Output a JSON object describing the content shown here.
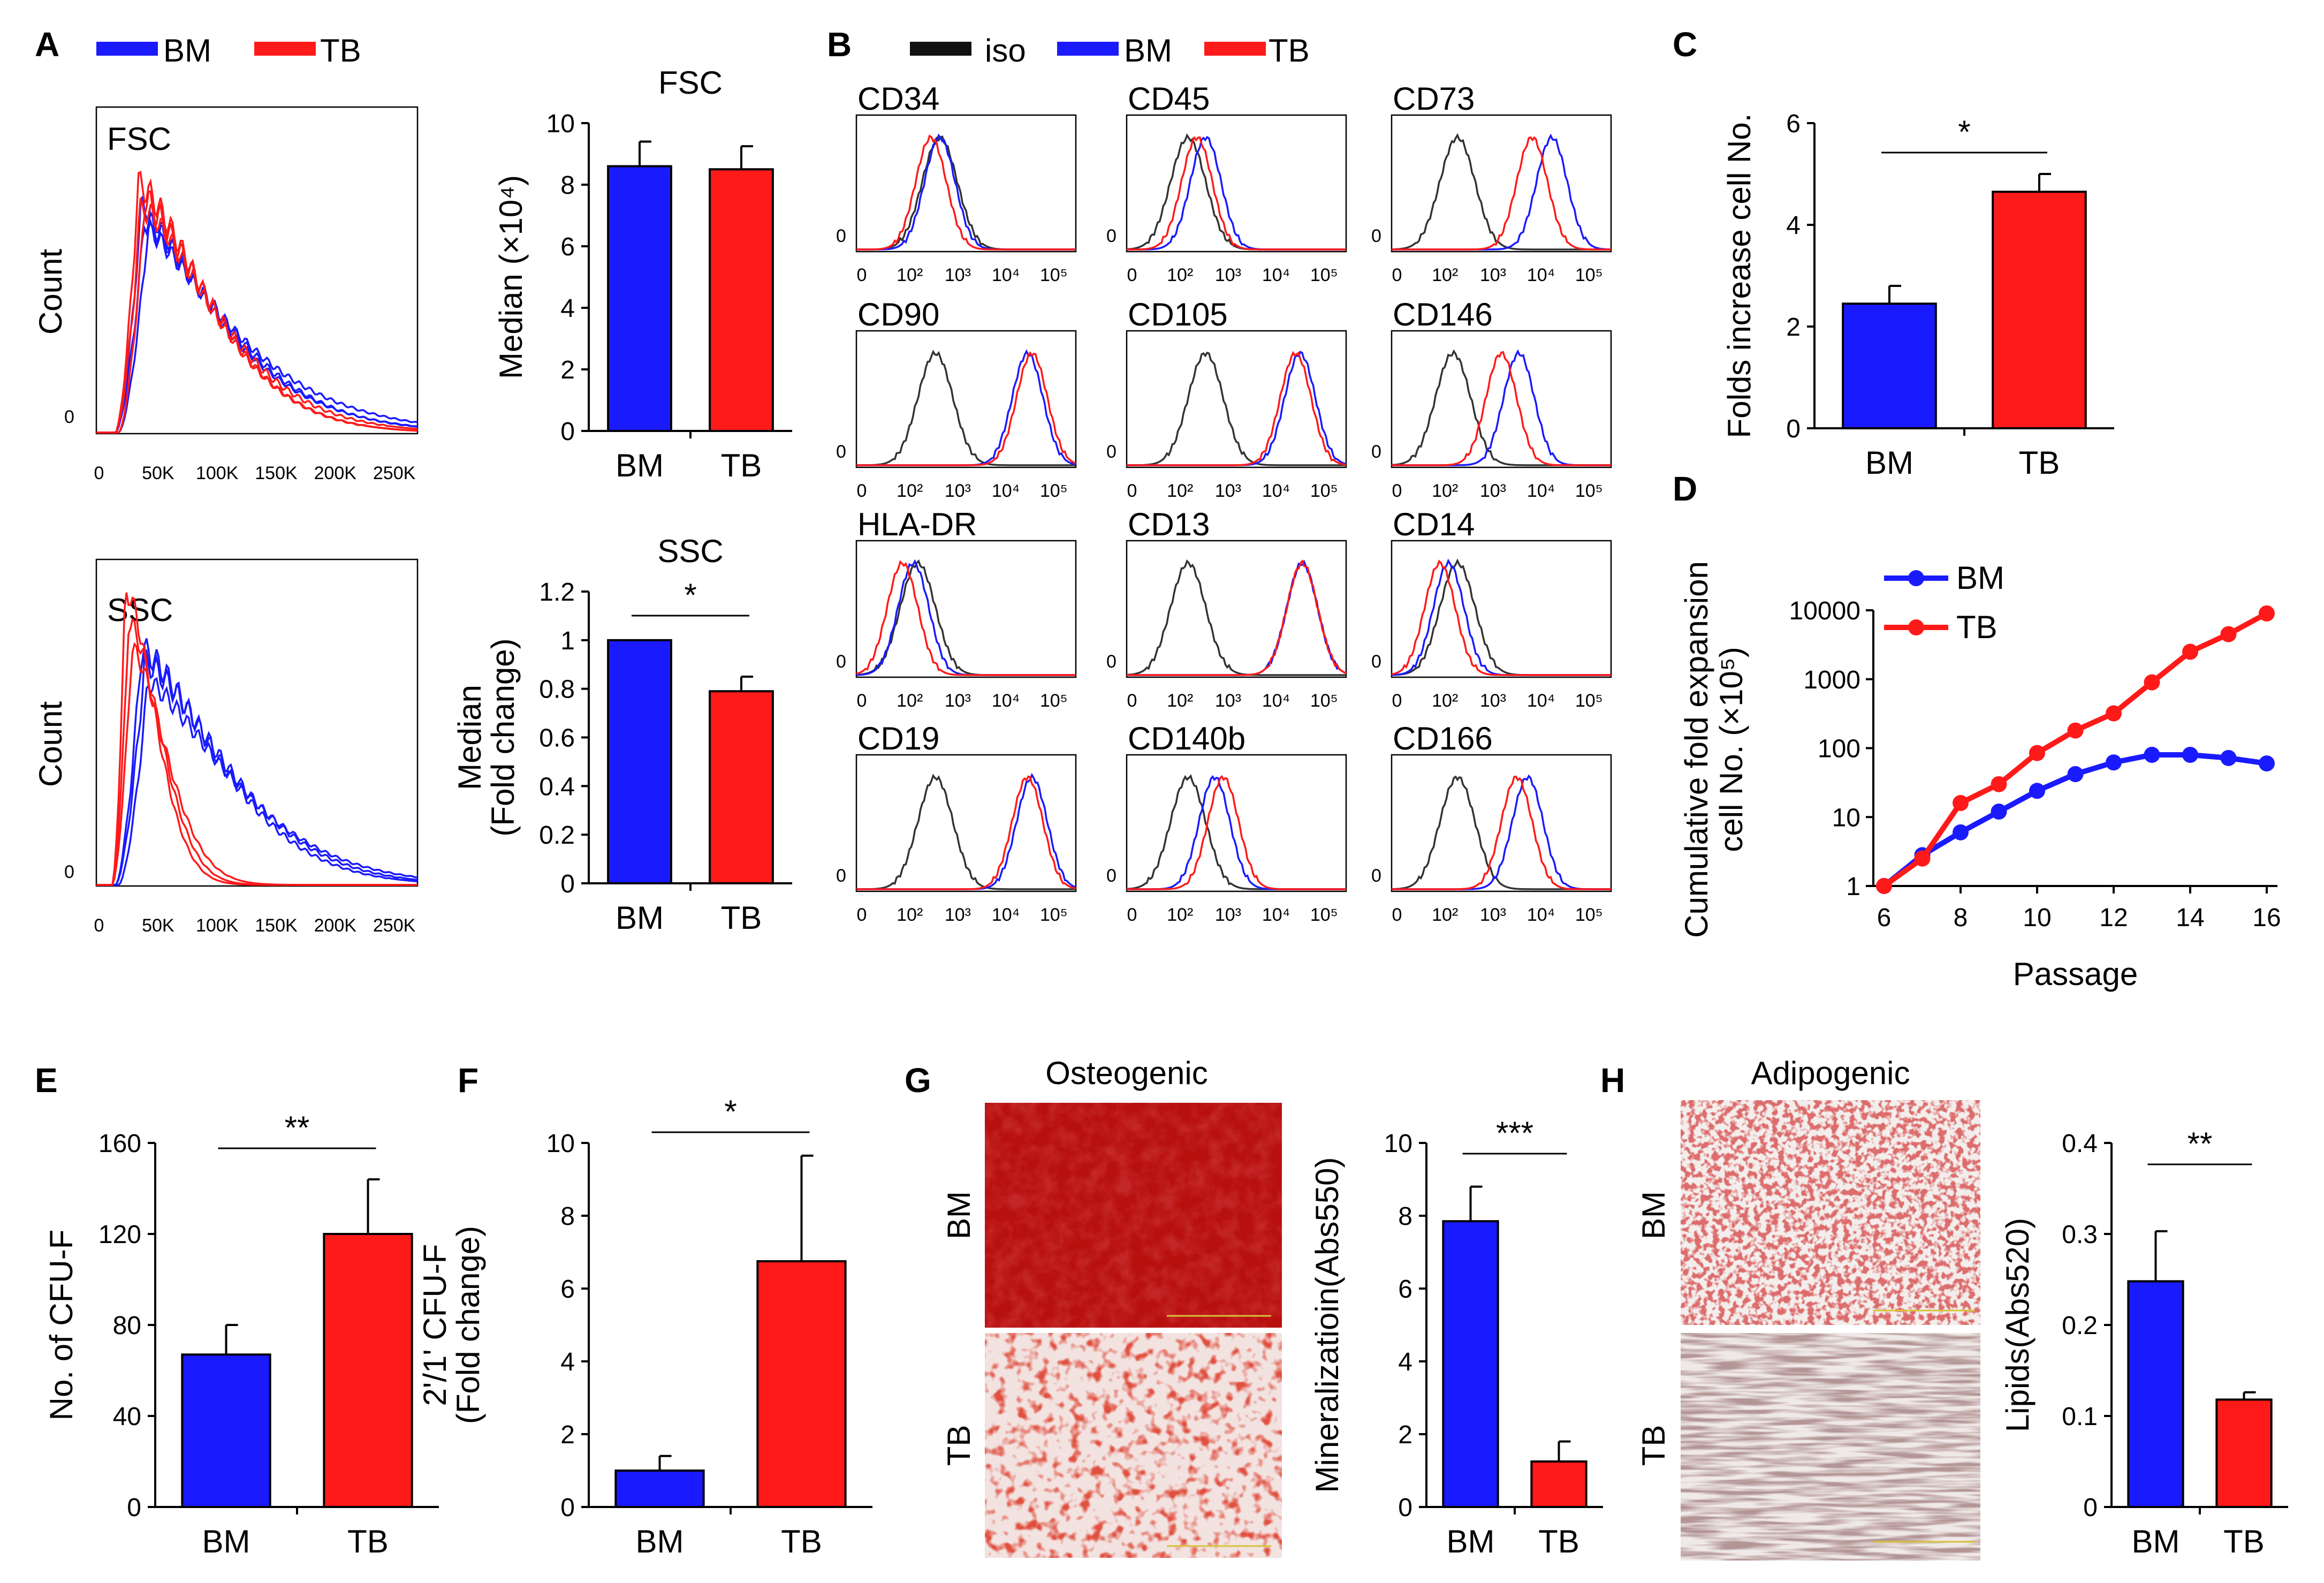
{
  "colors": {
    "BM": "#1a1aff",
    "TB": "#ff1a1a",
    "iso": "#333333"
  },
  "panelA": {
    "label": "A",
    "legend": [
      {
        "key": "BM",
        "label": "BM"
      },
      {
        "key": "TB",
        "label": "TB"
      }
    ],
    "ylabel": "Count",
    "zero": "0",
    "xticks": [
      "0",
      "50K",
      "100K",
      "150K",
      "200K",
      "250K"
    ],
    "hist_labels": [
      "FSC",
      "SSC"
    ],
    "fsc_bar": {
      "type": "bar",
      "title": "FSC",
      "ylabel": "Median (×10⁴)",
      "categories": [
        "BM",
        "TB"
      ],
      "values": [
        8.6,
        8.5
      ],
      "errors": [
        0.8,
        0.75
      ],
      "ylim": [
        0,
        10
      ],
      "yticks": [
        "0",
        "2",
        "4",
        "6",
        "8",
        "10"
      ]
    },
    "ssc_bar": {
      "type": "bar",
      "title": "SSC",
      "ylabel_lines": [
        "Median",
        "(Fold change)"
      ],
      "categories": [
        "BM",
        "TB"
      ],
      "values": [
        1.0,
        0.79
      ],
      "errors": [
        0.0,
        0.06
      ],
      "ylim": [
        0,
        1.2
      ],
      "yticks": [
        "0",
        "0.2",
        "0.4",
        "0.6",
        "0.8",
        "1",
        "1.2"
      ],
      "sig": "*"
    }
  },
  "panelB": {
    "label": "B",
    "legend": [
      {
        "key": "iso",
        "label": "iso"
      },
      {
        "key": "BM",
        "label": "BM"
      },
      {
        "key": "TB",
        "label": "TB"
      }
    ],
    "markers": [
      "CD34",
      "CD45",
      "CD73",
      "CD90",
      "CD105",
      "CD146",
      "HLA-DR",
      "CD13",
      "CD14",
      "CD19",
      "CD140b",
      "CD166"
    ],
    "zero": "0",
    "xticks": [
      "0",
      "10²",
      "10³",
      "10⁴",
      "10⁵"
    ]
  },
  "chart_data": [
    {
      "type": "bar",
      "title": "FSC",
      "ylabel": "Median (×10⁴)",
      "categories": [
        "BM",
        "TB"
      ],
      "values": [
        8.6,
        8.5
      ],
      "ylim": [
        0,
        10
      ]
    },
    {
      "type": "bar",
      "title": "SSC",
      "ylabel": "Median (Fold change)",
      "categories": [
        "BM",
        "TB"
      ],
      "values": [
        1.0,
        0.79
      ],
      "ylim": [
        0,
        1.2
      ]
    },
    {
      "type": "bar",
      "ylabel": "Folds increase cell No.",
      "categories": [
        "BM",
        "TB"
      ],
      "values": [
        2.45,
        4.65
      ],
      "ylim": [
        0,
        6
      ]
    },
    {
      "type": "line",
      "xlabel": "Passage",
      "ylabel": "Cumulative fold expansion cell No. (×10⁵)",
      "x": [
        6,
        7,
        8,
        9,
        10,
        11,
        12,
        13,
        14,
        15,
        16
      ],
      "series": [
        {
          "name": "BM",
          "values": [
            1,
            2.8,
            6,
            12,
            24,
            42,
            62,
            80,
            80,
            72,
            60
          ]
        },
        {
          "name": "TB",
          "values": [
            1,
            2.5,
            16,
            30,
            85,
            180,
            320,
            900,
            2500,
            4500,
            9000
          ]
        }
      ]
    },
    {
      "type": "bar",
      "ylabel": "No. of CFU-F",
      "categories": [
        "BM",
        "TB"
      ],
      "values": [
        67,
        120
      ],
      "ylim": [
        0,
        160
      ]
    },
    {
      "type": "bar",
      "ylabel": "2'/1' CFU-F (Fold change)",
      "categories": [
        "BM",
        "TB"
      ],
      "values": [
        1.0,
        6.75
      ],
      "ylim": [
        0,
        10
      ]
    },
    {
      "type": "bar",
      "ylabel": "Mineralizatioin(Abs550)",
      "categories": [
        "BM",
        "TB"
      ],
      "values": [
        7.85,
        1.25
      ],
      "ylim": [
        0,
        10
      ]
    },
    {
      "type": "bar",
      "ylabel": "Lipids(Abs520)",
      "categories": [
        "BM",
        "TB"
      ],
      "values": [
        0.248,
        0.118
      ],
      "ylim": [
        0,
        0.4
      ]
    }
  ],
  "panelC": {
    "label": "C",
    "type": "bar",
    "ylabel": "Folds increase cell No.",
    "categories": [
      "BM",
      "TB"
    ],
    "values": [
      2.45,
      4.65
    ],
    "errors": [
      0.35,
      0.35
    ],
    "ylim": [
      0,
      6
    ],
    "yticks": [
      "0",
      "2",
      "4",
      "6"
    ],
    "sig": "*"
  },
  "panelD": {
    "label": "D",
    "xlabel": "Passage",
    "ylabel_lines": [
      "Cumulative fold expansion",
      "cell No. (×10⁵)"
    ],
    "x": [
      6,
      7,
      8,
      9,
      10,
      11,
      12,
      13,
      14,
      15,
      16
    ],
    "series": [
      {
        "name": "BM",
        "key": "BM",
        "values": [
          1,
          2.8,
          6,
          12,
          24,
          42,
          62,
          80,
          80,
          72,
          60
        ]
      },
      {
        "name": "TB",
        "key": "TB",
        "values": [
          1,
          2.5,
          16,
          30,
          85,
          180,
          320,
          900,
          2500,
          4500,
          9000
        ]
      }
    ],
    "yticks": [
      "1",
      "10",
      "100",
      "1000",
      "10000"
    ],
    "xticks": [
      "6",
      "8",
      "10",
      "12",
      "14",
      "16"
    ]
  },
  "panelE": {
    "label": "E",
    "type": "bar",
    "ylabel": "No. of CFU-F",
    "categories": [
      "BM",
      "TB"
    ],
    "values": [
      67,
      120
    ],
    "errors": [
      13,
      24
    ],
    "ylim": [
      0,
      160
    ],
    "yticks": [
      "0",
      "40",
      "80",
      "120",
      "160"
    ],
    "sig": "**"
  },
  "panelF": {
    "label": "F",
    "type": "bar",
    "ylabel_lines": [
      "2'/1' CFU-F",
      "(Fold change)"
    ],
    "categories": [
      "BM",
      "TB"
    ],
    "values": [
      1.0,
      6.75
    ],
    "errors": [
      0.4,
      2.9
    ],
    "ylim": [
      0,
      10
    ],
    "yticks": [
      "0",
      "2",
      "4",
      "6",
      "8",
      "10"
    ],
    "sig": "*"
  },
  "panelG": {
    "label": "G",
    "image_title": "Osteogenic",
    "row_labels": [
      "BM",
      "TB"
    ],
    "type": "bar",
    "ylabel": "Mineralizatioin(Abs550)",
    "categories": [
      "BM",
      "TB"
    ],
    "values": [
      7.85,
      1.25
    ],
    "errors": [
      0.95,
      0.55
    ],
    "ylim": [
      0,
      10
    ],
    "yticks": [
      "0",
      "2",
      "4",
      "6",
      "8",
      "10"
    ],
    "sig": "***"
  },
  "panelH": {
    "label": "H",
    "image_title": "Adipogenic",
    "row_labels": [
      "BM",
      "TB"
    ],
    "type": "bar",
    "ylabel": "Lipids(Abs520)",
    "categories": [
      "BM",
      "TB"
    ],
    "values": [
      0.248,
      0.118
    ],
    "errors": [
      0.055,
      0.008
    ],
    "ylim": [
      0,
      0.4
    ],
    "yticks": [
      "0",
      "0.1",
      "0.2",
      "0.3",
      "0.4"
    ],
    "sig": "**"
  }
}
